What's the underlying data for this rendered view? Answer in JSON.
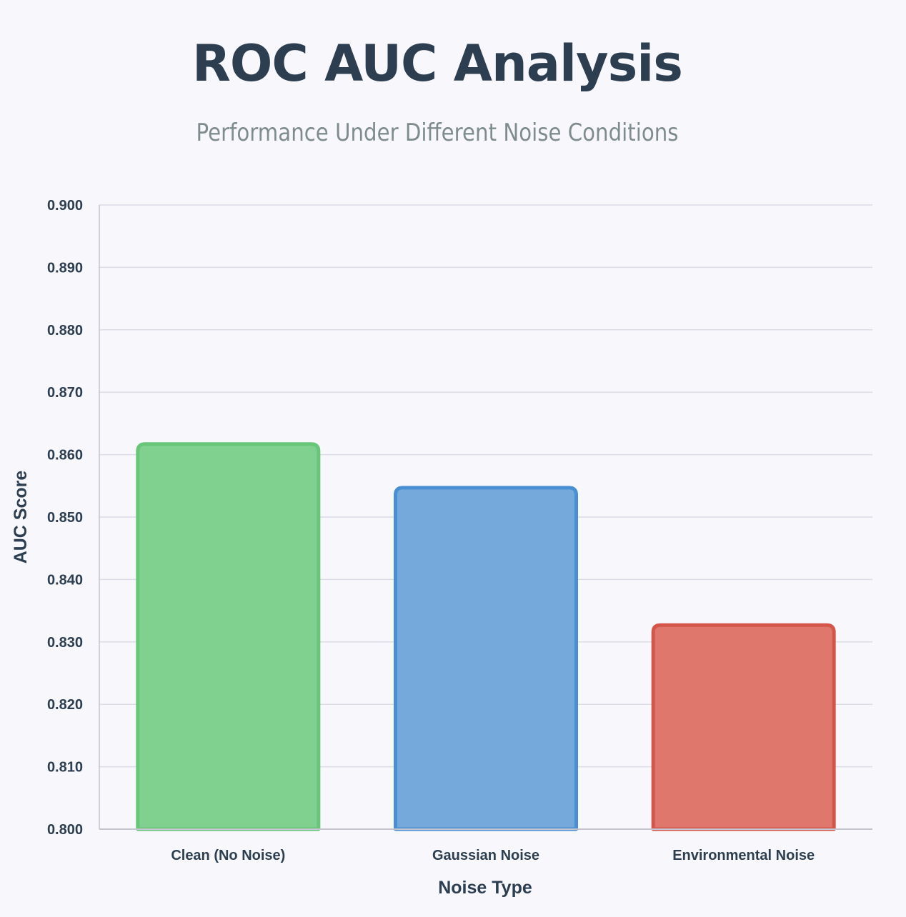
{
  "chart_data": {
    "type": "bar",
    "title": "ROC AUC Analysis",
    "subtitle": "Performance Under Different Noise Conditions",
    "xlabel": "Noise Type",
    "ylabel": "AUC Score",
    "categories": [
      "Clean (No Noise)",
      "Gaussian Noise",
      "Environmental Noise"
    ],
    "values": [
      0.8617,
      0.8547,
      0.8327
    ],
    "ylim": [
      0.8,
      0.9
    ],
    "yticks": [
      "0.800",
      "0.810",
      "0.820",
      "0.830",
      "0.840",
      "0.850",
      "0.860",
      "0.870",
      "0.880",
      "0.890",
      "0.900"
    ],
    "grid": true,
    "legend": "none",
    "colors": {
      "fills": [
        "#80d190",
        "#75a8db",
        "#e0776c"
      ],
      "borders": [
        "#67c677",
        "#4a8fd4",
        "#d4564a"
      ],
      "grid": "#dcdce6",
      "axis": "#c4c4cc"
    }
  }
}
